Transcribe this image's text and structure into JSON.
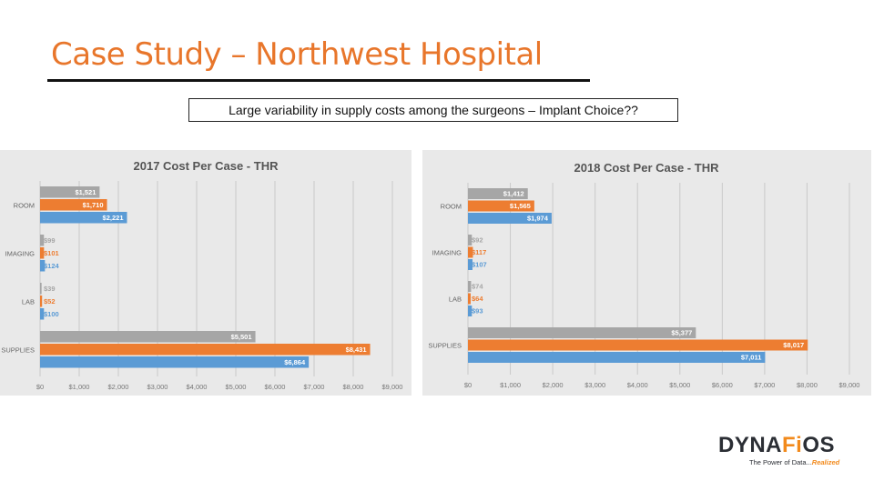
{
  "slide": {
    "title": "Case Study – Northwest Hospital",
    "callout": "Large variability in supply costs among the surgeons – Implant Choice??"
  },
  "logo": {
    "word_start": "DYNA",
    "word_accent": "Fi",
    "word_end": "OS",
    "tagline_start": "The Power of Data...",
    "tagline_accent": "Realized",
    "accent_color": "#f28a1c"
  },
  "chart_data": [
    {
      "type": "bar",
      "orientation": "horizontal",
      "title": "2017 Cost Per Case - THR",
      "categories": [
        "ROOM",
        "IMAGING",
        "LAB",
        "SUPPLIES"
      ],
      "series": [
        {
          "color": "#a6a6a6",
          "values": [
            1521,
            99,
            39,
            5501
          ],
          "labels": [
            "$1,521",
            "$99",
            "$39",
            "$5,501"
          ]
        },
        {
          "color": "#ed7d31",
          "values": [
            1710,
            101,
            52,
            8431
          ],
          "labels": [
            "$1,710",
            "$101",
            "$52",
            "$8,431"
          ]
        },
        {
          "color": "#5b9bd5",
          "values": [
            2221,
            124,
            100,
            6864
          ],
          "labels": [
            "$2,221",
            "$124",
            "$100",
            "$6,864"
          ]
        }
      ],
      "xlim": [
        0,
        9000
      ],
      "x_ticks": [
        0,
        1000,
        2000,
        3000,
        4000,
        5000,
        6000,
        7000,
        8000,
        9000
      ],
      "x_tick_labels": [
        "$0",
        "$1,000",
        "$2,000",
        "$3,000",
        "$4,000",
        "$5,000",
        "$6,000",
        "$7,000",
        "$8,000",
        "$9,000"
      ],
      "grid": true,
      "legend": "none"
    },
    {
      "type": "bar",
      "orientation": "horizontal",
      "title": "2018 Cost Per Case - THR",
      "categories": [
        "ROOM",
        "IMAGING",
        "LAB",
        "SUPPLIES"
      ],
      "series": [
        {
          "color": "#a6a6a6",
          "values": [
            1412,
            92,
            74,
            5377
          ],
          "labels": [
            "$1,412",
            "$92",
            "$74",
            "$5,377"
          ]
        },
        {
          "color": "#ed7d31",
          "values": [
            1565,
            117,
            64,
            8017
          ],
          "labels": [
            "$1,565",
            "$117",
            "$64",
            "$8,017"
          ]
        },
        {
          "color": "#5b9bd5",
          "values": [
            1974,
            107,
            93,
            7011
          ],
          "labels": [
            "$1,974",
            "$107",
            "$93",
            "$7,011"
          ]
        }
      ],
      "xlim": [
        0,
        9000
      ],
      "x_ticks": [
        0,
        1000,
        2000,
        3000,
        4000,
        5000,
        6000,
        7000,
        8000,
        9000
      ],
      "x_tick_labels": [
        "$0",
        "$1,000",
        "$2,000",
        "$3,000",
        "$4,000",
        "$5,000",
        "$6,000",
        "$7,000",
        "$8,000",
        "$9,000"
      ],
      "grid": true,
      "legend": "none"
    }
  ]
}
